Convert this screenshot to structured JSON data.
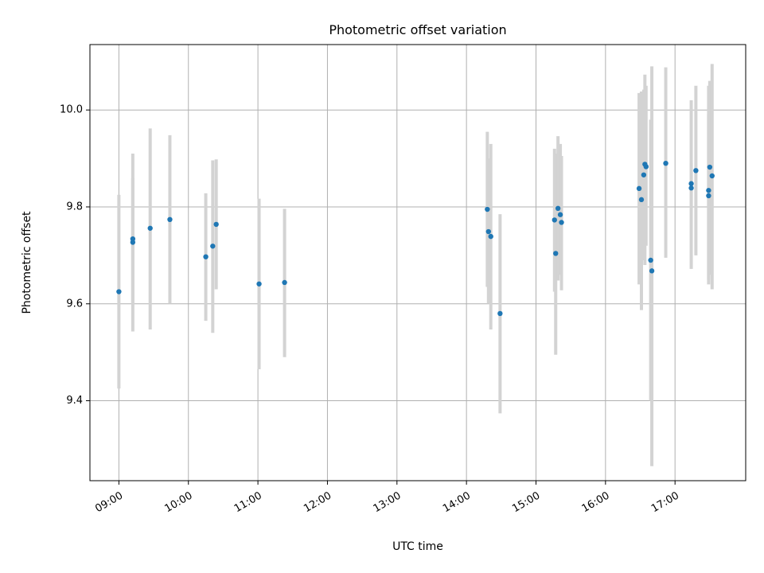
{
  "chart_data": {
    "type": "scatter",
    "title": "Photometric offset variation",
    "xlabel": "UTC time",
    "ylabel": "Photometric offset",
    "x_ticks": [
      "09:00",
      "10:00",
      "11:00",
      "12:00",
      "13:00",
      "14:00",
      "15:00",
      "16:00",
      "17:00"
    ],
    "y_ticks": [
      "9.4",
      "9.6",
      "9.8",
      "10.0"
    ],
    "xlim": [
      "08:35",
      "18:01"
    ],
    "ylim": [
      9.235,
      10.135
    ],
    "grid": true,
    "marker_color": "#1f77b4",
    "errorbar_color": "#d3d3d3",
    "points": [
      {
        "x": "09:00",
        "y": 9.625,
        "lo": 9.425,
        "hi": 9.825
      },
      {
        "x": "09:12",
        "y": 9.734,
        "lo": 9.543,
        "hi": 9.91
      },
      {
        "x": "09:12",
        "y": 9.727,
        "lo": 9.6,
        "hi": 9.86
      },
      {
        "x": "09:27",
        "y": 9.756,
        "lo": 9.547,
        "hi": 9.962
      },
      {
        "x": "09:44",
        "y": 9.774,
        "lo": 9.6,
        "hi": 9.948
      },
      {
        "x": "10:15",
        "y": 9.697,
        "lo": 9.565,
        "hi": 9.828
      },
      {
        "x": "10:21",
        "y": 9.719,
        "lo": 9.54,
        "hi": 9.896
      },
      {
        "x": "10:24",
        "y": 9.764,
        "lo": 9.63,
        "hi": 9.898
      },
      {
        "x": "11:01",
        "y": 9.641,
        "lo": 9.465,
        "hi": 9.817
      },
      {
        "x": "11:23",
        "y": 9.644,
        "lo": 9.49,
        "hi": 9.796
      },
      {
        "x": "14:18",
        "y": 9.795,
        "lo": 9.635,
        "hi": 9.955
      },
      {
        "x": "14:19",
        "y": 9.749,
        "lo": 9.6,
        "hi": 9.9
      },
      {
        "x": "14:21",
        "y": 9.739,
        "lo": 9.547,
        "hi": 9.93
      },
      {
        "x": "14:29",
        "y": 9.58,
        "lo": 9.374,
        "hi": 9.785
      },
      {
        "x": "15:16",
        "y": 9.773,
        "lo": 9.625,
        "hi": 9.92
      },
      {
        "x": "15:17",
        "y": 9.704,
        "lo": 9.495,
        "hi": 9.91
      },
      {
        "x": "15:19",
        "y": 9.797,
        "lo": 9.648,
        "hi": 9.946
      },
      {
        "x": "15:21",
        "y": 9.784,
        "lo": 9.66,
        "hi": 9.93
      },
      {
        "x": "15:22",
        "y": 9.768,
        "lo": 9.628,
        "hi": 9.905
      },
      {
        "x": "16:29",
        "y": 9.838,
        "lo": 9.64,
        "hi": 10.035
      },
      {
        "x": "16:31",
        "y": 9.815,
        "lo": 9.587,
        "hi": 10.038
      },
      {
        "x": "16:33",
        "y": 9.866,
        "lo": 9.69,
        "hi": 10.042
      },
      {
        "x": "16:34",
        "y": 9.888,
        "lo": 9.68,
        "hi": 10.073
      },
      {
        "x": "16:35",
        "y": 9.883,
        "lo": 9.72,
        "hi": 10.05
      },
      {
        "x": "16:39",
        "y": 9.69,
        "lo": 9.4,
        "hi": 9.98
      },
      {
        "x": "16:40",
        "y": 9.668,
        "lo": 9.265,
        "hi": 10.09
      },
      {
        "x": "16:52",
        "y": 9.89,
        "lo": 9.695,
        "hi": 10.088
      },
      {
        "x": "17:14",
        "y": 9.848,
        "lo": 9.672,
        "hi": 10.02
      },
      {
        "x": "17:14",
        "y": 9.839,
        "lo": 9.8,
        "hi": 9.89
      },
      {
        "x": "17:18",
        "y": 9.875,
        "lo": 9.7,
        "hi": 10.05
      },
      {
        "x": "17:29",
        "y": 9.834,
        "lo": 9.65,
        "hi": 10.05
      },
      {
        "x": "17:29",
        "y": 9.823,
        "lo": 9.64,
        "hi": 9.99
      },
      {
        "x": "17:30",
        "y": 9.882,
        "lo": 9.66,
        "hi": 10.06
      },
      {
        "x": "17:32",
        "y": 9.864,
        "lo": 9.63,
        "hi": 10.095
      }
    ]
  }
}
